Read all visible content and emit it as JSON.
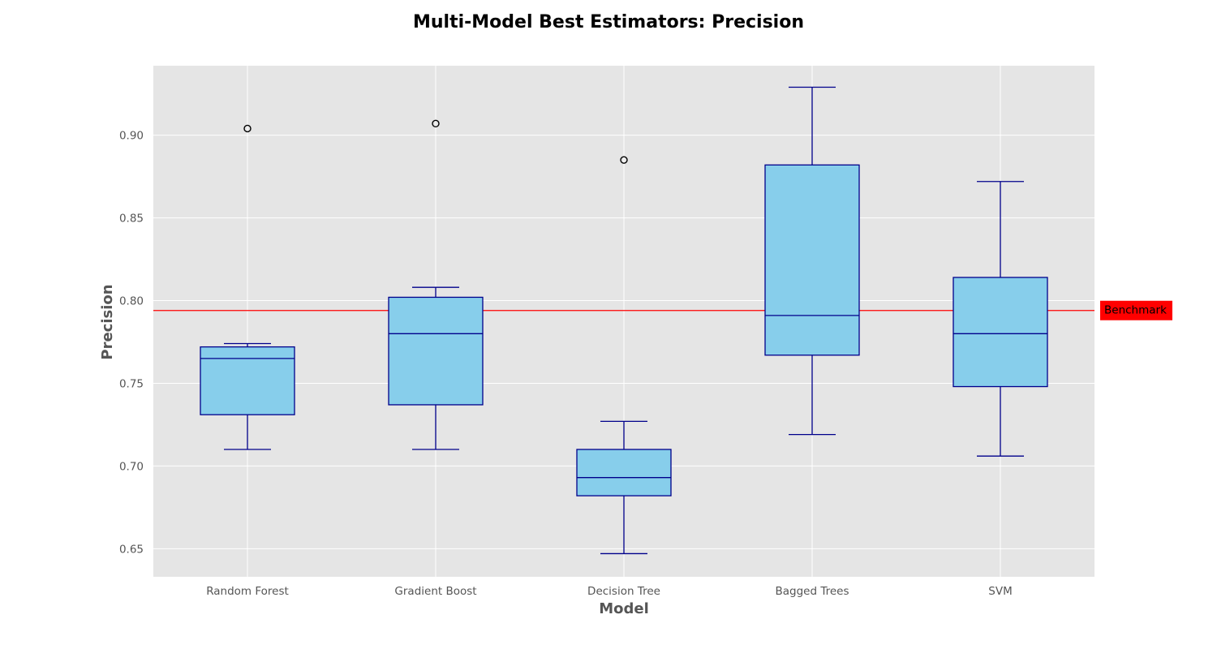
{
  "chart_data": {
    "type": "box",
    "title": "Multi-Model Best Estimators: Precision",
    "xlabel": "Model",
    "ylabel": "Precision",
    "ylim": [
      0.633,
      0.942
    ],
    "yticks": [
      0.65,
      0.7,
      0.75,
      0.8,
      0.85,
      0.9
    ],
    "ytick_labels": [
      "0.65",
      "0.70",
      "0.75",
      "0.80",
      "0.85",
      "0.90"
    ],
    "grid": true,
    "categories": [
      "Random Forest",
      "Gradient Boost",
      "Decision Tree",
      "Bagged Trees",
      "SVM"
    ],
    "boxes": [
      {
        "category": "Random Forest",
        "whisker_low": 0.71,
        "q1": 0.731,
        "median": 0.765,
        "q3": 0.772,
        "whisker_high": 0.774,
        "outliers": [
          0.904
        ]
      },
      {
        "category": "Gradient Boost",
        "whisker_low": 0.71,
        "q1": 0.737,
        "median": 0.78,
        "q3": 0.802,
        "whisker_high": 0.808,
        "outliers": [
          0.907
        ]
      },
      {
        "category": "Decision Tree",
        "whisker_low": 0.647,
        "q1": 0.682,
        "median": 0.693,
        "q3": 0.71,
        "whisker_high": 0.727,
        "outliers": [
          0.885
        ]
      },
      {
        "category": "Bagged Trees",
        "whisker_low": 0.719,
        "q1": 0.767,
        "median": 0.791,
        "q3": 0.882,
        "whisker_high": 0.929,
        "outliers": []
      },
      {
        "category": "SVM",
        "whisker_low": 0.706,
        "q1": 0.748,
        "median": 0.78,
        "q3": 0.814,
        "whisker_high": 0.872,
        "outliers": []
      }
    ],
    "benchmark": {
      "label": "Benchmark",
      "value": 0.794
    }
  },
  "colors": {
    "plot_background": "#e5e5e5",
    "grid": "#ffffff",
    "box_fill": "#87ceeb",
    "box_edge": "#00008b",
    "benchmark_line": "#ff0000",
    "benchmark_label_bg": "#ff0000",
    "outlier_edge": "#000000"
  }
}
